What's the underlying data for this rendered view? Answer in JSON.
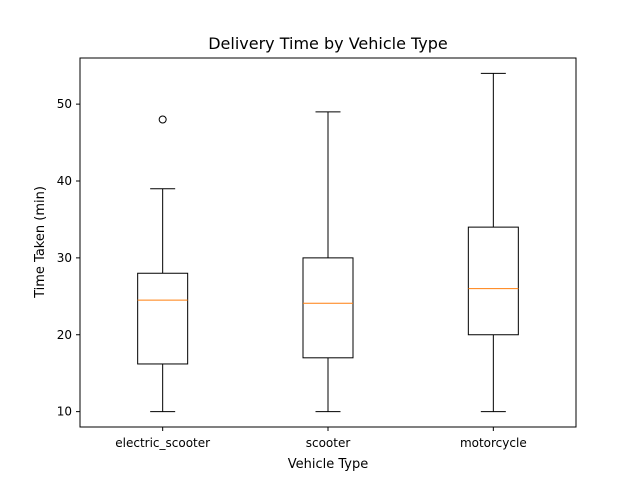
{
  "chart_data": {
    "type": "boxplot",
    "title": "Delivery Time by Vehicle Type",
    "xlabel": "Vehicle Type",
    "ylabel": "Time Taken (min)",
    "ylim": [
      8,
      56
    ],
    "yticks": [
      10,
      20,
      30,
      40,
      50
    ],
    "grid": false,
    "categories": [
      "electric_scooter",
      "scooter",
      "motorcycle"
    ],
    "boxes": [
      {
        "category": "electric_scooter",
        "whisker_low": 10,
        "q1": 16.2,
        "median": 24.5,
        "q3": 28,
        "whisker_high": 39,
        "outliers": [
          48
        ]
      },
      {
        "category": "scooter",
        "whisker_low": 10,
        "q1": 17,
        "median": 24.1,
        "q3": 30,
        "whisker_high": 49,
        "outliers": []
      },
      {
        "category": "motorcycle",
        "whisker_low": 10,
        "q1": 20,
        "median": 26,
        "q3": 34,
        "whisker_high": 54,
        "outliers": []
      }
    ],
    "colors": {
      "box": "#000000",
      "median": "#ff7f0e",
      "outlier": "#000000"
    }
  }
}
